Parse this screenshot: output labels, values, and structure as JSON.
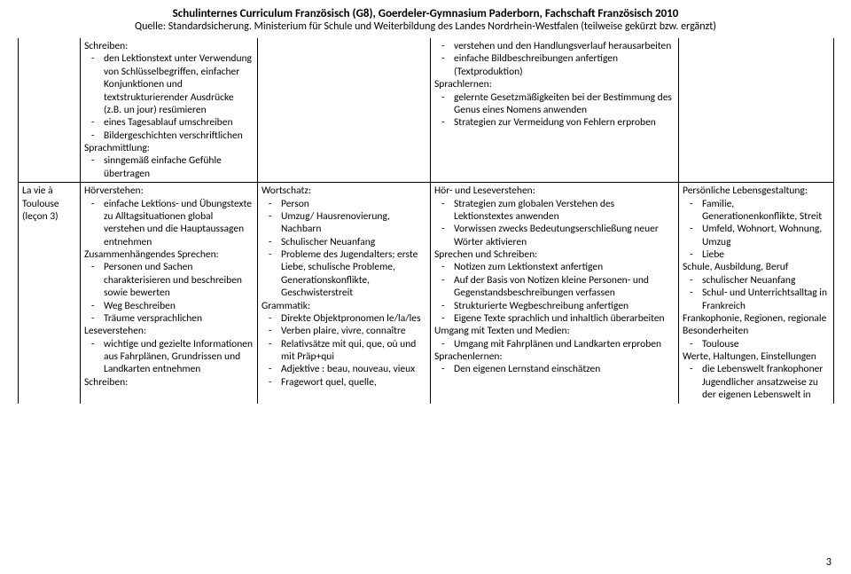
{
  "header": {
    "title": "Schulinternes Curriculum Französisch (G8), Goerdeler-Gymnasium Paderborn, Fachschaft Französisch 2010",
    "subtitle": "Quelle: Standardsicherung. Ministerium für Schule und Weiterbildung des Landes Nordrhein-Westfalen (teilweise gekürzt bzw. ergänzt)"
  },
  "row1": {
    "col1": {
      "h0": "Schreiben:",
      "li0": "den Lektionstext unter Verwendung von Schlüsselbegriffen, einfacher Konjunktionen und textstrukturierender Ausdrücke (z.B. un jour) resümieren",
      "li1": "eines Tagesablauf umschreiben",
      "li2": "Bildergeschichten verschriftlichen",
      "h1": "Sprachmittlung:",
      "li3": "sinngemäß einfache Gefühle übertragen"
    },
    "col3": {
      "li0": "verstehen und den Handlungsverlauf herausarbeiten",
      "li1": "einfache Bildbeschreibungen anfertigen (Textproduktion)",
      "h0": "Sprachlernen:",
      "li2": "gelernte Gesetzmäßigkeiten bei der Bestimmung des Genus eines Nomens anwenden",
      "li3": "Strategien zur Vermeidung von Fehlern erproben"
    }
  },
  "row2": {
    "label": {
      "l0": "La vie à",
      "l1": "Toulouse",
      "l2": "(leçon 3)"
    },
    "col1": {
      "h0": "Hörverstehen:",
      "li0": "einfache Lektions- und Übungstexte zu Alltagsituationen global verstehen und die Hauptaussagen entnehmen",
      "h1": "Zusammenhängendes Sprechen:",
      "li1": "Personen und Sachen charakterisieren und beschreiben sowie bewerten",
      "li2": "Weg Beschreiben",
      "li3": "Träume versprachlichen",
      "h2": "Leseverstehen:",
      "li4": "wichtige und gezielte Informationen aus Fahrplänen, Grundrissen und Landkarten entnehmen",
      "h3": "Schreiben:"
    },
    "col2": {
      "h0": "Wortschatz:",
      "li0": "Person",
      "li1": "Umzug/ Hausrenovierung, Nachbarn",
      "li2": "Schulischer Neuanfang",
      "li3": "Probleme des Jugendalters; erste Liebe, schulische Probleme, Generationskonflikte, Geschwisterstreit",
      "h1": "Grammatik:",
      "li4": "Direkte Objektpronomen le/la/les",
      "li5": "Verben plaire, vivre, connaître",
      "li6": "Relativsätze mit qui, que, où und mit Präp+qui",
      "li7": "Adjektive : beau, nouveau, vieux",
      "li8": "Fragewort quel, quelle,"
    },
    "col3": {
      "h0": "Hör- und Leseverstehen:",
      "li0": "Strategien zum globalen Verstehen des Lektionstextes anwenden",
      "li1": "Vorwissen zwecks Bedeutungserschließung neuer Wörter aktivieren",
      "h1": "Sprechen und Schreiben:",
      "li2": "Notizen zum Lektionstext anfertigen",
      "li3": "Auf der Basis von Notizen kleine Personen- und Gegenstandsbeschreibungen verfassen",
      "li4": "Strukturierte Wegbeschreibung anfertigen",
      "li5": "Eigene Texte sprachlich und inhaltlich überarbeiten",
      "h2": "Umgang mit Texten und Medien:",
      "li6": "Umgang mit Fahrplänen und Landkarten erproben",
      "h3": "Sprachenlernen:",
      "li7": "Den eigenen Lernstand einschätzen"
    },
    "col4": {
      "h0": "Persönliche Lebensgestaltung:",
      "li0": "Familie, Generationenkonflikte, Streit",
      "li1": "Umfeld, Wohnort, Wohnung, Umzug",
      "li2": "Liebe",
      "h1": "Schule, Ausbildung, Beruf",
      "li3": "schulischer Neuanfang",
      "li4": "Schul- und Unterrichtsalltag in Frankreich",
      "h2": "Frankophonie, Regionen, regionale Besonderheiten",
      "li5": "Toulouse",
      "h3": "Werte, Haltungen, Einstellungen",
      "li6": "die Lebenswelt frankophoner Jugendlicher ansatzweise zu der eigenen Lebenswelt in"
    }
  },
  "page": "3"
}
